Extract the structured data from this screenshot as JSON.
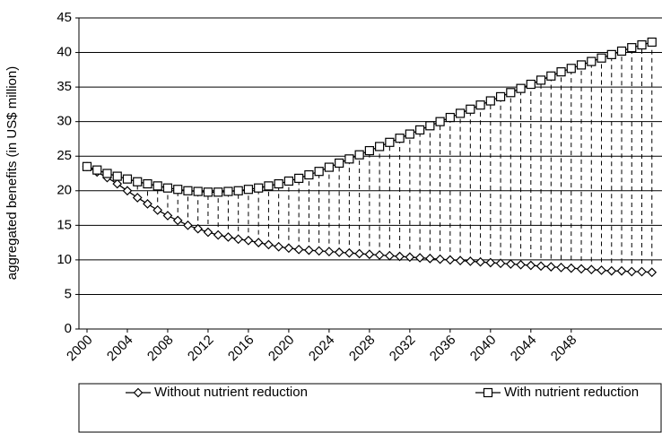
{
  "chart_data": {
    "type": "line",
    "y_label": "aggregated benefits (in US$ million)",
    "x": [
      2000,
      2001,
      2002,
      2003,
      2004,
      2005,
      2006,
      2007,
      2008,
      2009,
      2010,
      2011,
      2012,
      2013,
      2014,
      2015,
      2016,
      2017,
      2018,
      2019,
      2020,
      2021,
      2022,
      2023,
      2024,
      2025,
      2026,
      2027,
      2028,
      2029,
      2030,
      2031,
      2032,
      2033,
      2034,
      2035,
      2036,
      2037,
      2038,
      2039,
      2040,
      2041,
      2042,
      2043,
      2044,
      2045,
      2046,
      2047,
      2048,
      2049,
      2050,
      2051,
      2052,
      2053,
      2054,
      2055,
      2056
    ],
    "series": [
      {
        "name": "Without nutrient reduction",
        "color": "#000000",
        "marker": "diamond",
        "values": [
          23.5,
          22.7,
          21.9,
          21.0,
          20.0,
          19.0,
          18.1,
          17.2,
          16.4,
          15.7,
          15.0,
          14.5,
          14.0,
          13.6,
          13.3,
          13.0,
          12.8,
          12.5,
          12.2,
          11.9,
          11.7,
          11.5,
          11.4,
          11.3,
          11.2,
          11.1,
          11.0,
          10.9,
          10.8,
          10.7,
          10.6,
          10.5,
          10.4,
          10.3,
          10.2,
          10.1,
          10.0,
          9.9,
          9.8,
          9.7,
          9.6,
          9.5,
          9.4,
          9.3,
          9.2,
          9.1,
          9.0,
          8.9,
          8.8,
          8.7,
          8.6,
          8.5,
          8.4,
          8.4,
          8.3,
          8.3,
          8.2
        ]
      },
      {
        "name": "With nutrient reduction",
        "color": "#000000",
        "marker": "square",
        "values": [
          23.5,
          23.0,
          22.5,
          22.1,
          21.7,
          21.3,
          21.0,
          20.7,
          20.4,
          20.2,
          20.0,
          19.9,
          19.8,
          19.8,
          19.9,
          20.0,
          20.2,
          20.4,
          20.7,
          21.0,
          21.4,
          21.8,
          22.3,
          22.8,
          23.4,
          24.0,
          24.6,
          25.2,
          25.8,
          26.4,
          27.0,
          27.6,
          28.2,
          28.8,
          29.4,
          30.0,
          30.6,
          31.2,
          31.8,
          32.4,
          33.0,
          33.6,
          34.2,
          34.8,
          35.4,
          36.0,
          36.6,
          37.2,
          37.7,
          38.2,
          38.7,
          39.2,
          39.7,
          40.2,
          40.7,
          41.1,
          41.5
        ]
      }
    ],
    "xlim": [
      1999.2,
      2057.0
    ],
    "xticks": [
      2000,
      2004,
      2008,
      2012,
      2016,
      2020,
      2024,
      2028,
      2032,
      2036,
      2040,
      2044,
      2048
    ],
    "ylim": [
      0,
      45
    ],
    "yticks": [
      0,
      5,
      10,
      15,
      20,
      25,
      30,
      35,
      40,
      45
    ],
    "grid": true,
    "legend": "bottom"
  }
}
